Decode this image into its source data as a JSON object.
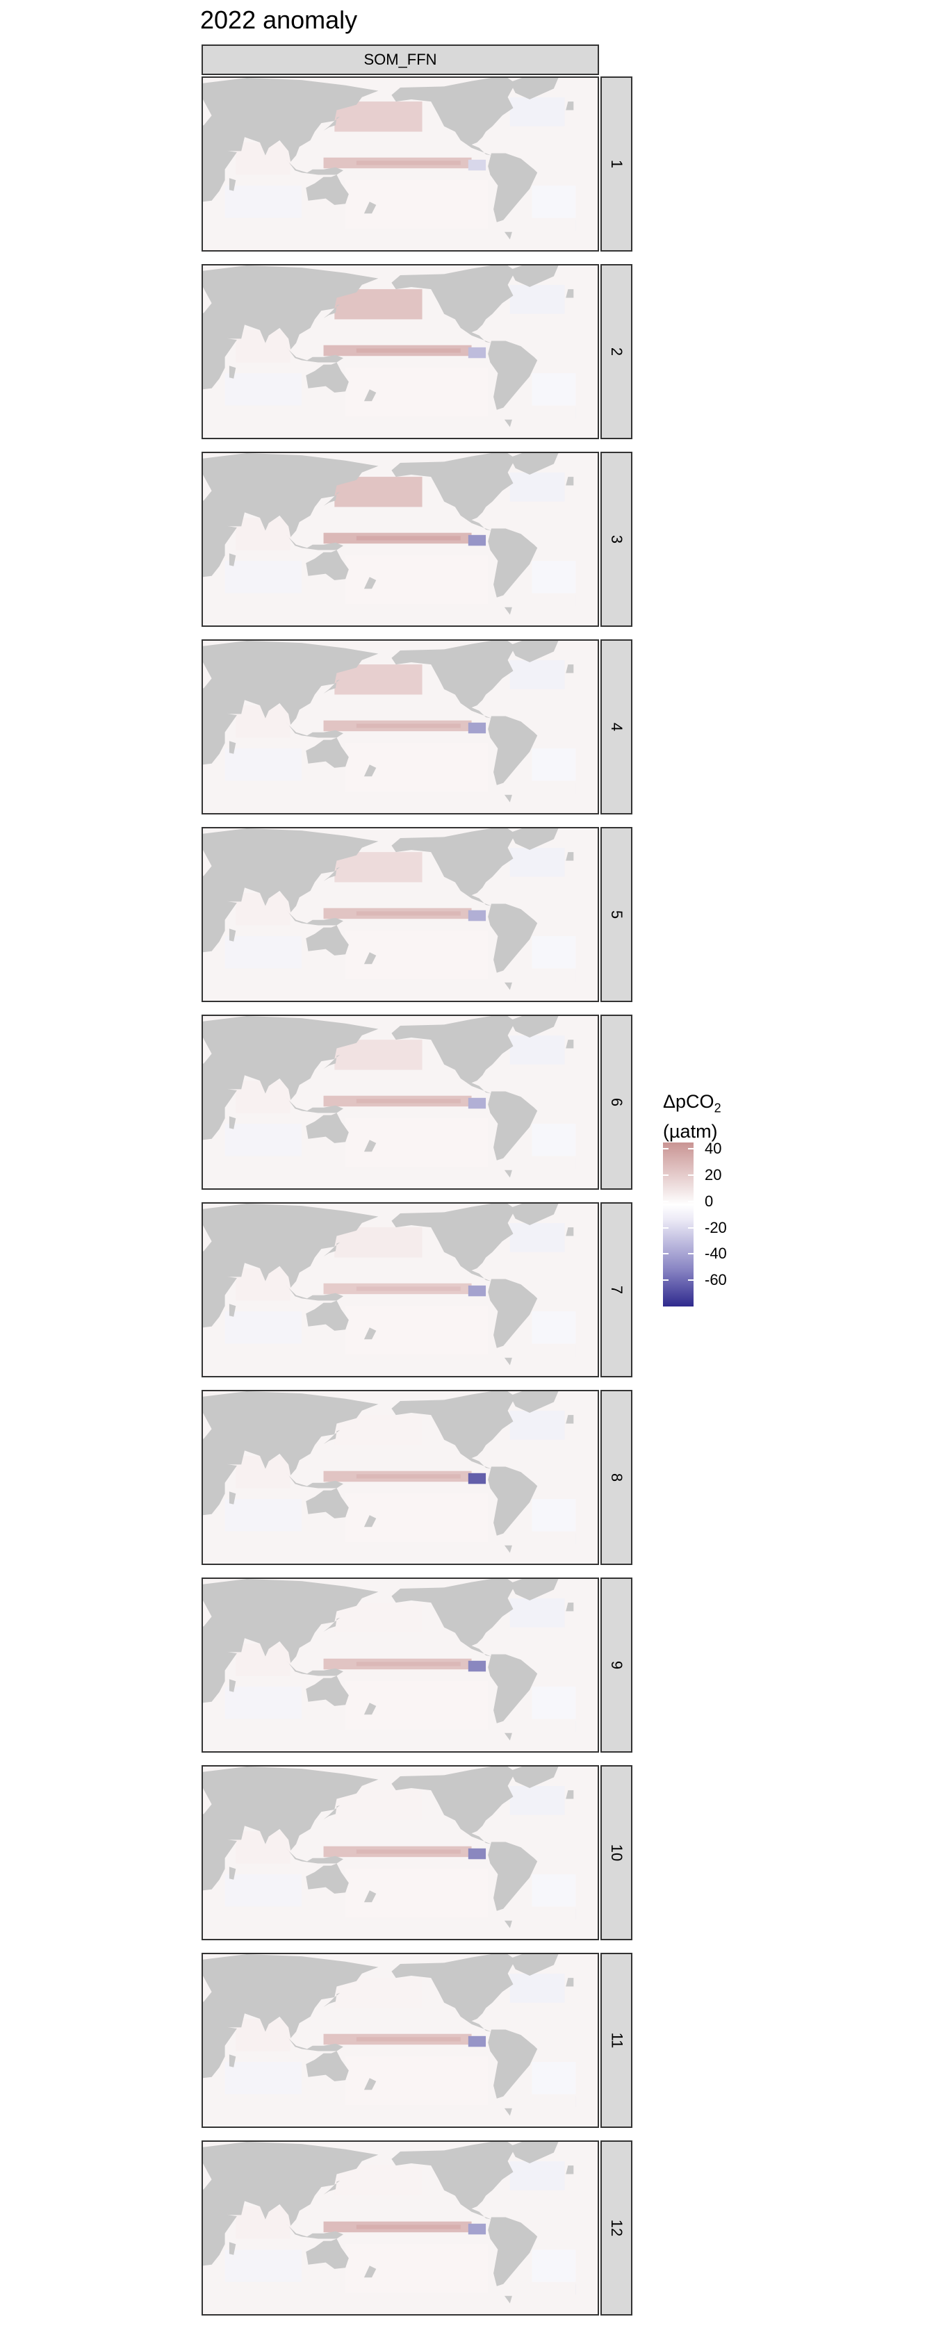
{
  "title": "2022 anomaly",
  "model": "SOM_FFN",
  "panels": [
    {
      "label": "1"
    },
    {
      "label": "2"
    },
    {
      "label": "3"
    },
    {
      "label": "4"
    },
    {
      "label": "5"
    },
    {
      "label": "6"
    },
    {
      "label": "7"
    },
    {
      "label": "8"
    },
    {
      "label": "9"
    },
    {
      "label": "10"
    },
    {
      "label": "11"
    },
    {
      "label": "12"
    }
  ],
  "legend": {
    "title_main": "ΔpCO",
    "title_sub": "2",
    "title_unit": "(µatm)",
    "ticks": [
      {
        "value": 40,
        "label": "40"
      },
      {
        "value": 20,
        "label": "20"
      },
      {
        "value": 0,
        "label": "0"
      },
      {
        "value": -20,
        "label": "-20"
      },
      {
        "value": -40,
        "label": "-40"
      },
      {
        "value": -60,
        "label": "-60"
      }
    ],
    "range": [
      -80,
      45
    ]
  },
  "colors": {
    "land": "#c8c8c8",
    "ocean": "#f8f4f4",
    "positive": "#c99493",
    "negative": "#2f2a8e",
    "strip": "#d9d9d9"
  },
  "chart_data": {
    "type": "heatmap",
    "title": "2022 anomaly",
    "facet_column": [
      "SOM_FFN"
    ],
    "facet_rows": [
      "1",
      "2",
      "3",
      "4",
      "5",
      "6",
      "7",
      "8",
      "9",
      "10",
      "11",
      "12"
    ],
    "colorbar": {
      "label": "ΔpCO2 (µatm)",
      "ticks": [
        40,
        20,
        0,
        -20,
        -40,
        -60
      ]
    },
    "features_by_month": [
      {
        "month": "1",
        "eq_pacific": 25,
        "e_pacific": -15,
        "n_pacific": 20,
        "s_ocean": -10
      },
      {
        "month": "2",
        "eq_pacific": 28,
        "e_pacific": -25,
        "n_pacific": 25,
        "s_ocean": -10
      },
      {
        "month": "3",
        "eq_pacific": 30,
        "e_pacific": -40,
        "n_pacific": 25,
        "s_ocean": -8
      },
      {
        "month": "4",
        "eq_pacific": 25,
        "e_pacific": -35,
        "n_pacific": 20,
        "s_ocean": -8
      },
      {
        "month": "5",
        "eq_pacific": 25,
        "e_pacific": -30,
        "n_pacific": 15,
        "s_ocean": -8
      },
      {
        "month": "6",
        "eq_pacific": 25,
        "e_pacific": -30,
        "n_pacific": 12,
        "s_ocean": -8
      },
      {
        "month": "7",
        "eq_pacific": 22,
        "e_pacific": -35,
        "n_pacific": 8,
        "s_ocean": -8
      },
      {
        "month": "8",
        "eq_pacific": 25,
        "e_pacific": -60,
        "n_pacific": 5,
        "s_ocean": -10
      },
      {
        "month": "9",
        "eq_pacific": 25,
        "e_pacific": -45,
        "n_pacific": 5,
        "s_ocean": -10
      },
      {
        "month": "10",
        "eq_pacific": 25,
        "e_pacific": -45,
        "n_pacific": 5,
        "s_ocean": -12
      },
      {
        "month": "11",
        "eq_pacific": 25,
        "e_pacific": -40,
        "n_pacific": 5,
        "s_ocean": -12
      },
      {
        "month": "12",
        "eq_pacific": 28,
        "e_pacific": -35,
        "n_pacific": 5,
        "s_ocean": -15
      }
    ]
  }
}
